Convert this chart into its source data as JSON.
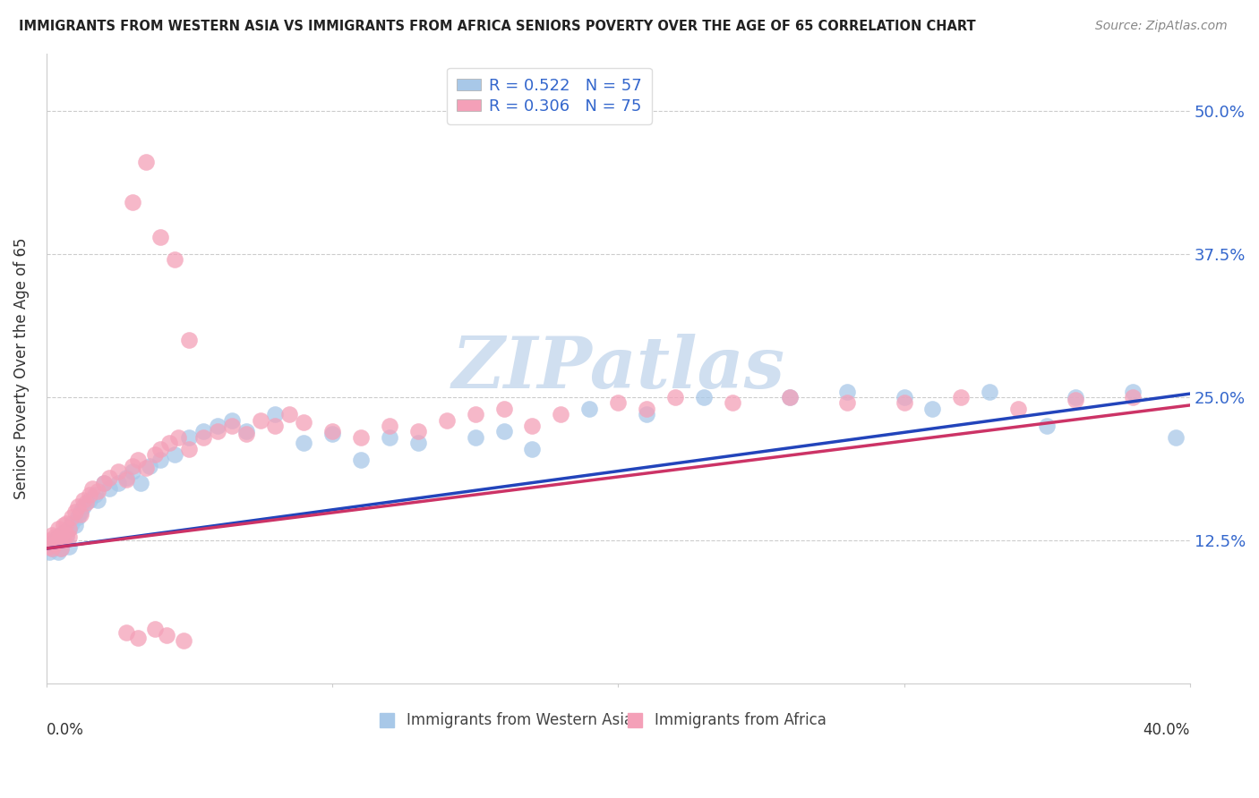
{
  "title": "IMMIGRANTS FROM WESTERN ASIA VS IMMIGRANTS FROM AFRICA SENIORS POVERTY OVER THE AGE OF 65 CORRELATION CHART",
  "source": "Source: ZipAtlas.com",
  "ylabel": "Seniors Poverty Over the Age of 65",
  "ytick_labels": [
    "12.5%",
    "25.0%",
    "37.5%",
    "50.0%"
  ],
  "ytick_values": [
    0.125,
    0.25,
    0.375,
    0.5
  ],
  "xlim": [
    0.0,
    0.4
  ],
  "ylim": [
    0.0,
    0.55
  ],
  "legend1_label": "R = 0.522   N = 57",
  "legend2_label": "R = 0.306   N = 75",
  "series1_color": "#a8c8e8",
  "series2_color": "#f4a0b8",
  "line1_color": "#2244bb",
  "line2_color": "#cc3366",
  "watermark": "ZIPatlas",
  "watermark_color": "#d0dff0",
  "background_color": "#ffffff",
  "series1_x": [
    0.001,
    0.002,
    0.002,
    0.003,
    0.003,
    0.004,
    0.004,
    0.005,
    0.005,
    0.006,
    0.006,
    0.007,
    0.008,
    0.008,
    0.009,
    0.01,
    0.011,
    0.012,
    0.013,
    0.015,
    0.017,
    0.018,
    0.02,
    0.022,
    0.025,
    0.028,
    0.03,
    0.033,
    0.036,
    0.04,
    0.045,
    0.05,
    0.055,
    0.06,
    0.065,
    0.07,
    0.08,
    0.09,
    0.1,
    0.11,
    0.12,
    0.13,
    0.15,
    0.16,
    0.17,
    0.19,
    0.21,
    0.23,
    0.26,
    0.28,
    0.3,
    0.31,
    0.33,
    0.35,
    0.36,
    0.38,
    0.395
  ],
  "series1_y": [
    0.115,
    0.118,
    0.122,
    0.12,
    0.125,
    0.128,
    0.115,
    0.13,
    0.118,
    0.125,
    0.132,
    0.128,
    0.135,
    0.12,
    0.14,
    0.138,
    0.145,
    0.15,
    0.155,
    0.16,
    0.165,
    0.16,
    0.175,
    0.17,
    0.175,
    0.18,
    0.185,
    0.175,
    0.19,
    0.195,
    0.2,
    0.215,
    0.22,
    0.225,
    0.23,
    0.22,
    0.235,
    0.21,
    0.218,
    0.195,
    0.215,
    0.21,
    0.215,
    0.22,
    0.205,
    0.24,
    0.235,
    0.25,
    0.25,
    0.255,
    0.25,
    0.24,
    0.255,
    0.225,
    0.25,
    0.255,
    0.215
  ],
  "series2_x": [
    0.001,
    0.001,
    0.002,
    0.002,
    0.003,
    0.003,
    0.004,
    0.004,
    0.005,
    0.005,
    0.006,
    0.006,
    0.007,
    0.007,
    0.008,
    0.008,
    0.009,
    0.01,
    0.011,
    0.012,
    0.013,
    0.014,
    0.015,
    0.016,
    0.018,
    0.02,
    0.022,
    0.025,
    0.028,
    0.03,
    0.032,
    0.035,
    0.038,
    0.04,
    0.043,
    0.046,
    0.05,
    0.055,
    0.06,
    0.065,
    0.07,
    0.075,
    0.08,
    0.085,
    0.09,
    0.1,
    0.11,
    0.12,
    0.13,
    0.14,
    0.15,
    0.16,
    0.17,
    0.18,
    0.2,
    0.21,
    0.22,
    0.24,
    0.26,
    0.28,
    0.3,
    0.32,
    0.34,
    0.36,
    0.38,
    0.03,
    0.035,
    0.04,
    0.045,
    0.05,
    0.028,
    0.032,
    0.038,
    0.042,
    0.048
  ],
  "series2_y": [
    0.12,
    0.125,
    0.118,
    0.13,
    0.122,
    0.128,
    0.125,
    0.135,
    0.118,
    0.13,
    0.125,
    0.138,
    0.13,
    0.14,
    0.135,
    0.128,
    0.145,
    0.15,
    0.155,
    0.148,
    0.16,
    0.158,
    0.165,
    0.17,
    0.168,
    0.175,
    0.18,
    0.185,
    0.178,
    0.19,
    0.195,
    0.188,
    0.2,
    0.205,
    0.21,
    0.215,
    0.205,
    0.215,
    0.22,
    0.225,
    0.218,
    0.23,
    0.225,
    0.235,
    0.228,
    0.22,
    0.215,
    0.225,
    0.22,
    0.23,
    0.235,
    0.24,
    0.225,
    0.235,
    0.245,
    0.24,
    0.25,
    0.245,
    0.25,
    0.245,
    0.245,
    0.25,
    0.24,
    0.248,
    0.25,
    0.42,
    0.455,
    0.39,
    0.37,
    0.3,
    0.045,
    0.04,
    0.048,
    0.042,
    0.038
  ],
  "line1_x0": 0.0,
  "line1_y0": 0.118,
  "line1_x1": 0.4,
  "line1_y1": 0.253,
  "line2_x0": 0.0,
  "line2_y0": 0.118,
  "line2_x1": 0.4,
  "line2_y1": 0.243
}
